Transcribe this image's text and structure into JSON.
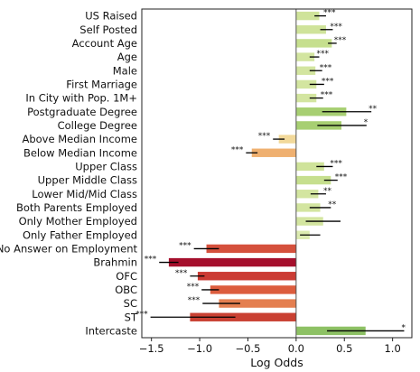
{
  "chart_data": {
    "type": "bar",
    "orientation": "horizontal",
    "title": "",
    "xlabel": "Log Odds",
    "ylabel": "",
    "xlim": [
      -1.6,
      1.2
    ],
    "xticks": [
      -1.5,
      -1.0,
      -0.5,
      0.0,
      0.5,
      1.0
    ],
    "xtick_labels": [
      "−1.5",
      "−1.0",
      "−0.5",
      "0.0",
      "0.5",
      "1.0"
    ],
    "grid": false,
    "legend": "none",
    "bars": [
      {
        "label": "US Raised",
        "value": 0.24,
        "lo": 0.19,
        "hi": 0.31,
        "sig": "***",
        "color": "#cfe39a"
      },
      {
        "label": "Self Posted",
        "value": 0.31,
        "lo": 0.25,
        "hi": 0.38,
        "sig": "***",
        "color": "#cfe39a"
      },
      {
        "label": "Account Age",
        "value": 0.37,
        "lo": 0.33,
        "hi": 0.42,
        "sig": "***",
        "color": "#c6df8e"
      },
      {
        "label": "Age",
        "value": 0.19,
        "lo": 0.14,
        "hi": 0.24,
        "sig": "***",
        "color": "#d3e5a0"
      },
      {
        "label": "Male",
        "value": 0.2,
        "lo": 0.14,
        "hi": 0.27,
        "sig": "***",
        "color": "#d3e5a0"
      },
      {
        "label": "First Marriage",
        "value": 0.21,
        "lo": 0.14,
        "hi": 0.29,
        "sig": "***",
        "color": "#d3e5a0"
      },
      {
        "label": "In City with Pop. 1M+",
        "value": 0.21,
        "lo": 0.14,
        "hi": 0.28,
        "sig": "***",
        "color": "#d3e5a0"
      },
      {
        "label": "Postgraduate Degree",
        "value": 0.52,
        "lo": 0.27,
        "hi": 0.78,
        "sig": "**",
        "color": "#a7cf72"
      },
      {
        "label": "College Degree",
        "value": 0.47,
        "lo": 0.22,
        "hi": 0.73,
        "sig": "*",
        "color": "#a7cf72"
      },
      {
        "label": "Above Median Income",
        "value": -0.18,
        "lo": -0.24,
        "hi": -0.12,
        "sig": "***",
        "color": "#f2d99a"
      },
      {
        "label": "Below Median Income",
        "value": -0.46,
        "lo": -0.52,
        "hi": -0.4,
        "sig": "***",
        "color": "#efb070"
      },
      {
        "label": "Upper Class",
        "value": 0.29,
        "lo": 0.21,
        "hi": 0.38,
        "sig": "***",
        "color": "#cfe39a"
      },
      {
        "label": "Upper Middle Class",
        "value": 0.36,
        "lo": 0.29,
        "hi": 0.43,
        "sig": "***",
        "color": "#c6df8e"
      },
      {
        "label": "Lower Mid/Mid Class",
        "value": 0.23,
        "lo": 0.15,
        "hi": 0.31,
        "sig": "**",
        "color": "#d3e5a0"
      },
      {
        "label": "Both Parents Employed",
        "value": 0.25,
        "lo": 0.14,
        "hi": 0.36,
        "sig": "**",
        "color": "#d3e5a0"
      },
      {
        "label": "Only Mother Employed",
        "value": 0.28,
        "lo": 0.1,
        "hi": 0.46,
        "sig": "",
        "color": "#d3e5a0"
      },
      {
        "label": "Only Father Employed",
        "value": 0.14,
        "lo": 0.04,
        "hi": 0.25,
        "sig": "",
        "color": "#dcebb0"
      },
      {
        "label": "No Answer on Employment",
        "value": -0.93,
        "lo": -1.06,
        "hi": -0.8,
        "sig": "***",
        "color": "#d5503c"
      },
      {
        "label": "Brahmin",
        "value": -1.32,
        "lo": -1.42,
        "hi": -1.22,
        "sig": "***",
        "color": "#a50f2c"
      },
      {
        "label": "OFC",
        "value": -1.02,
        "lo": -1.1,
        "hi": -0.95,
        "sig": "***",
        "color": "#cb3c34"
      },
      {
        "label": "OBC",
        "value": -0.89,
        "lo": -0.98,
        "hi": -0.8,
        "sig": "***",
        "color": "#dc5d3e"
      },
      {
        "label": "SC",
        "value": -0.8,
        "lo": -0.97,
        "hi": -0.58,
        "sig": "***",
        "color": "#e47f50"
      },
      {
        "label": "ST",
        "value": -1.1,
        "lo": -1.51,
        "hi": -0.63,
        "sig": "***",
        "color": "#c94032"
      },
      {
        "label": "Intercaste",
        "value": 0.72,
        "lo": 0.32,
        "hi": 1.12,
        "sig": "*",
        "color": "#8dc164"
      }
    ]
  }
}
